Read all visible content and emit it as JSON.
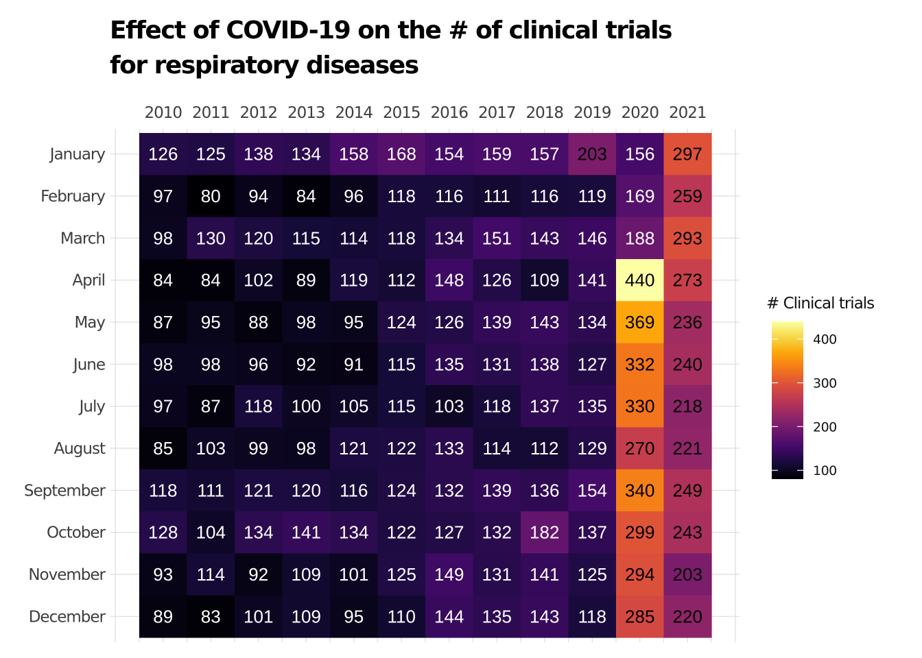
{
  "chart_data": {
    "type": "heatmap",
    "title": "Effect of COVID-19 on the # of clinical trials\nfor respiratory diseases",
    "title_lines": [
      "Effect of COVID-19 on the # of clinical trials",
      "for respiratory diseases"
    ],
    "xlabel": "",
    "ylabel": "",
    "x_axis_position": "top",
    "x": [
      "2010",
      "2011",
      "2012",
      "2013",
      "2014",
      "2015",
      "2016",
      "2017",
      "2018",
      "2019",
      "2020",
      "2021"
    ],
    "y": [
      "January",
      "February",
      "March",
      "April",
      "May",
      "June",
      "July",
      "August",
      "September",
      "October",
      "November",
      "December"
    ],
    "values": [
      [
        126,
        125,
        138,
        134,
        158,
        168,
        154,
        159,
        157,
        203,
        156,
        297
      ],
      [
        97,
        80,
        94,
        84,
        96,
        118,
        116,
        111,
        116,
        119,
        169,
        259
      ],
      [
        98,
        130,
        120,
        115,
        114,
        118,
        134,
        151,
        143,
        146,
        188,
        293
      ],
      [
        84,
        84,
        102,
        89,
        119,
        112,
        148,
        126,
        109,
        141,
        440,
        273
      ],
      [
        87,
        95,
        88,
        98,
        95,
        124,
        126,
        139,
        143,
        134,
        369,
        236
      ],
      [
        98,
        98,
        96,
        92,
        91,
        115,
        135,
        131,
        138,
        127,
        332,
        240
      ],
      [
        97,
        87,
        118,
        100,
        105,
        115,
        103,
        118,
        137,
        135,
        330,
        218
      ],
      [
        85,
        103,
        99,
        98,
        121,
        122,
        133,
        114,
        112,
        129,
        270,
        221
      ],
      [
        118,
        111,
        121,
        120,
        116,
        124,
        132,
        139,
        136,
        154,
        340,
        249
      ],
      [
        128,
        104,
        134,
        141,
        134,
        122,
        127,
        132,
        182,
        137,
        299,
        243
      ],
      [
        93,
        114,
        92,
        109,
        101,
        125,
        149,
        131,
        141,
        125,
        294,
        203
      ],
      [
        89,
        83,
        101,
        109,
        95,
        110,
        144,
        135,
        143,
        118,
        285,
        220
      ]
    ],
    "colorscale": "inferno",
    "color_range": [
      80,
      440
    ],
    "label_color_threshold": 200,
    "label_colors": {
      "dark_cell": "#ffffff",
      "light_cell": "#000000"
    },
    "legend": {
      "title": "# Clinical trials",
      "ticks": [
        100,
        200,
        300,
        400
      ],
      "position": "right"
    },
    "grid": true
  }
}
